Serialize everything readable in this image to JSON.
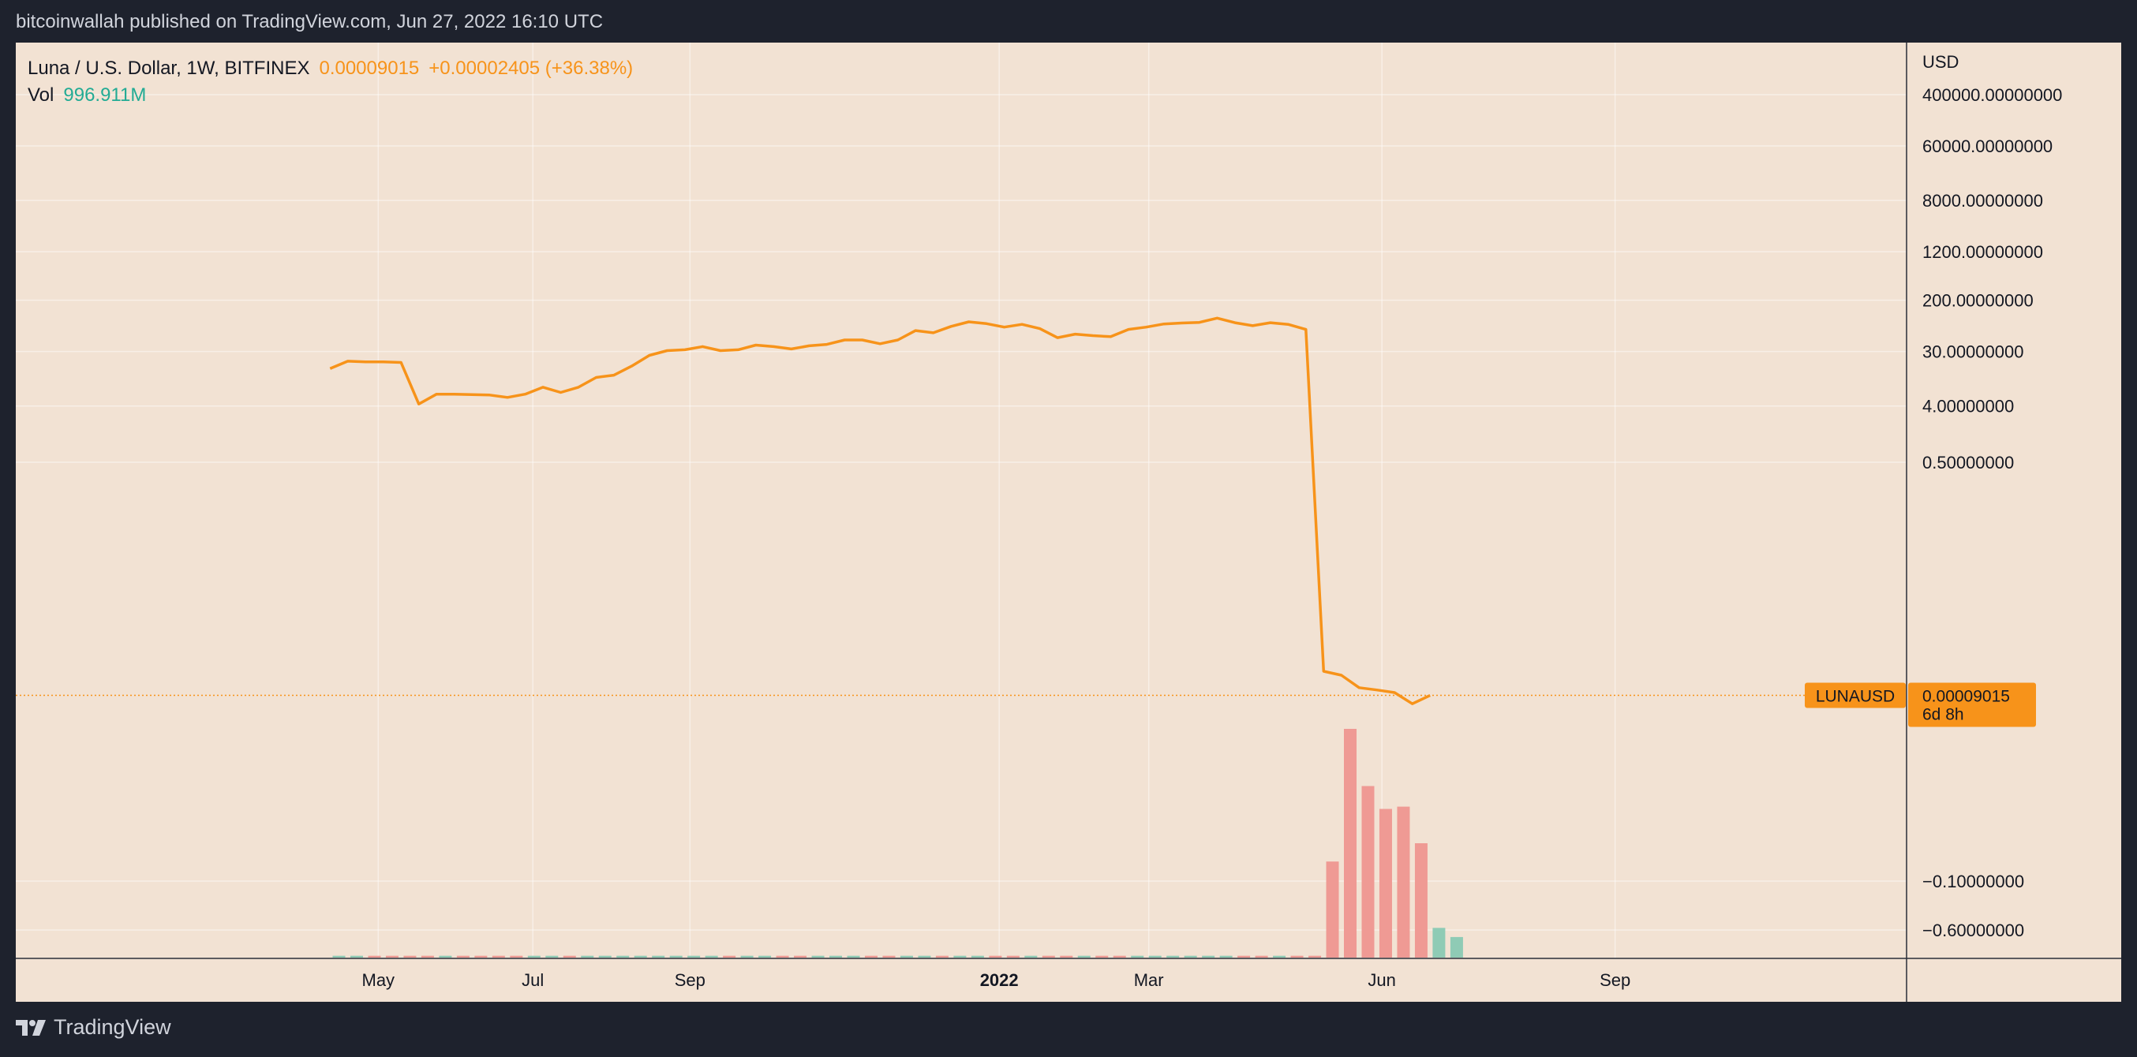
{
  "header": {
    "published_text": "bitcoinwallah published on TradingView.com, Jun 27, 2022 16:10 UTC"
  },
  "footer": {
    "brand": "TradingView"
  },
  "legend": {
    "symbol": "Luna / U.S. Dollar, 1W, BITFINEX",
    "last_price": "0.00009015",
    "change": "+0.00002405 (+36.38%)",
    "vol_label": "Vol",
    "vol_value": "996.911M"
  },
  "price_axis": {
    "currency": "USD"
  },
  "price_tag": {
    "symbol": "LUNAUSD",
    "value": "0.00009015",
    "countdown": "6d 8h"
  },
  "colors": {
    "price_line": "#f7931a",
    "volume_down": "#ef9a94",
    "volume_up": "#8fcbb5",
    "background": "#f2e2d3",
    "frame": "#1e222d"
  },
  "chart_data": {
    "type": "line",
    "price_scale": "log",
    "price_ticks": [
      {
        "label": "400000.00000000",
        "value": 400000
      },
      {
        "label": "60000.00000000",
        "value": 60000
      },
      {
        "label": "8000.00000000",
        "value": 8000
      },
      {
        "label": "1200.00000000",
        "value": 1200
      },
      {
        "label": "200.00000000",
        "value": 200
      },
      {
        "label": "30.00000000",
        "value": 30
      },
      {
        "label": "4.00000000",
        "value": 4
      },
      {
        "label": "0.50000000",
        "value": 0.5
      }
    ],
    "lower_ticks": [
      {
        "label": "−0.10000000"
      },
      {
        "label": "−0.60000000"
      }
    ],
    "time_ticks": [
      {
        "label": "May",
        "date": "2021-05-01",
        "bold": false
      },
      {
        "label": "Jul",
        "date": "2021-07-01",
        "bold": false
      },
      {
        "label": "Sep",
        "date": "2021-09-01",
        "bold": false
      },
      {
        "label": "2022",
        "date": "2022-01-01",
        "bold": true
      },
      {
        "label": "Mar",
        "date": "2022-03-01",
        "bold": false
      },
      {
        "label": "Jun",
        "date": "2022-06-01",
        "bold": false
      },
      {
        "label": "Sep",
        "date": "2022-09-01",
        "bold": false
      }
    ],
    "x_range": [
      "2020-12-09",
      "2022-12-25"
    ],
    "grid": true,
    "price_line": [
      {
        "date": "2021-04-12",
        "price": 16
      },
      {
        "date": "2021-04-19",
        "price": 21
      },
      {
        "date": "2021-04-26",
        "price": 20.5
      },
      {
        "date": "2021-05-03",
        "price": 20.5
      },
      {
        "date": "2021-05-10",
        "price": 20
      },
      {
        "date": "2021-05-17",
        "price": 4.3
      },
      {
        "date": "2021-05-24",
        "price": 6.2
      },
      {
        "date": "2021-05-31",
        "price": 6.2
      },
      {
        "date": "2021-06-07",
        "price": 6.1
      },
      {
        "date": "2021-06-14",
        "price": 6.0
      },
      {
        "date": "2021-06-21",
        "price": 5.5
      },
      {
        "date": "2021-06-28",
        "price": 6.2
      },
      {
        "date": "2021-07-05",
        "price": 8.0
      },
      {
        "date": "2021-07-12",
        "price": 6.6
      },
      {
        "date": "2021-07-19",
        "price": 8.0
      },
      {
        "date": "2021-07-26",
        "price": 11.5
      },
      {
        "date": "2021-08-02",
        "price": 12.5
      },
      {
        "date": "2021-08-09",
        "price": 17.5
      },
      {
        "date": "2021-08-16",
        "price": 26
      },
      {
        "date": "2021-08-23",
        "price": 31
      },
      {
        "date": "2021-08-30",
        "price": 32
      },
      {
        "date": "2021-09-06",
        "price": 36
      },
      {
        "date": "2021-09-13",
        "price": 31
      },
      {
        "date": "2021-09-20",
        "price": 32
      },
      {
        "date": "2021-09-27",
        "price": 38
      },
      {
        "date": "2021-10-04",
        "price": 36
      },
      {
        "date": "2021-10-11",
        "price": 33
      },
      {
        "date": "2021-10-18",
        "price": 37
      },
      {
        "date": "2021-10-25",
        "price": 39
      },
      {
        "date": "2021-11-01",
        "price": 46
      },
      {
        "date": "2021-11-08",
        "price": 46
      },
      {
        "date": "2021-11-15",
        "price": 40
      },
      {
        "date": "2021-11-22",
        "price": 46
      },
      {
        "date": "2021-11-29",
        "price": 65
      },
      {
        "date": "2021-12-06",
        "price": 60
      },
      {
        "date": "2021-12-13",
        "price": 76
      },
      {
        "date": "2021-12-20",
        "price": 90
      },
      {
        "date": "2021-12-27",
        "price": 84
      },
      {
        "date": "2022-01-03",
        "price": 74
      },
      {
        "date": "2022-01-10",
        "price": 82
      },
      {
        "date": "2022-01-17",
        "price": 70
      },
      {
        "date": "2022-01-24",
        "price": 50
      },
      {
        "date": "2022-01-31",
        "price": 57
      },
      {
        "date": "2022-02-07",
        "price": 54
      },
      {
        "date": "2022-02-14",
        "price": 52
      },
      {
        "date": "2022-02-21",
        "price": 68
      },
      {
        "date": "2022-02-28",
        "price": 74
      },
      {
        "date": "2022-03-07",
        "price": 83
      },
      {
        "date": "2022-03-14",
        "price": 86
      },
      {
        "date": "2022-03-21",
        "price": 88
      },
      {
        "date": "2022-03-28",
        "price": 103
      },
      {
        "date": "2022-04-04",
        "price": 87
      },
      {
        "date": "2022-04-11",
        "price": 78
      },
      {
        "date": "2022-04-18",
        "price": 87
      },
      {
        "date": "2022-04-25",
        "price": 82
      },
      {
        "date": "2022-05-02",
        "price": 68
      },
      {
        "date": "2022-05-09",
        "price": 0.00022
      },
      {
        "date": "2022-05-16",
        "price": 0.00019
      },
      {
        "date": "2022-05-23",
        "price": 0.00012
      },
      {
        "date": "2022-05-30",
        "price": 0.00011
      },
      {
        "date": "2022-06-06",
        "price": 0.0001
      },
      {
        "date": "2022-06-13",
        "price": 6.6e-05
      },
      {
        "date": "2022-06-20",
        "price": 9.015e-05
      }
    ],
    "volume_bars": [
      {
        "date": "2021-04-12",
        "direction": "up",
        "value": 0.008
      },
      {
        "date": "2021-04-19",
        "direction": "up",
        "value": 0.008
      },
      {
        "date": "2021-04-26",
        "direction": "down",
        "value": 0.008
      },
      {
        "date": "2021-05-03",
        "direction": "down",
        "value": 0.008
      },
      {
        "date": "2021-05-10",
        "direction": "down",
        "value": 0.008
      },
      {
        "date": "2021-05-17",
        "direction": "down",
        "value": 0.008
      },
      {
        "date": "2021-05-24",
        "direction": "up",
        "value": 0.008
      },
      {
        "date": "2021-05-31",
        "direction": "down",
        "value": 0.008
      },
      {
        "date": "2021-06-07",
        "direction": "down",
        "value": 0.008
      },
      {
        "date": "2021-06-14",
        "direction": "down",
        "value": 0.008
      },
      {
        "date": "2021-06-21",
        "direction": "down",
        "value": 0.008
      },
      {
        "date": "2021-06-28",
        "direction": "up",
        "value": 0.008
      },
      {
        "date": "2021-07-05",
        "direction": "up",
        "value": 0.008
      },
      {
        "date": "2021-07-12",
        "direction": "down",
        "value": 0.008
      },
      {
        "date": "2021-07-19",
        "direction": "up",
        "value": 0.008
      },
      {
        "date": "2021-07-26",
        "direction": "up",
        "value": 0.008
      },
      {
        "date": "2021-08-02",
        "direction": "up",
        "value": 0.008
      },
      {
        "date": "2021-08-09",
        "direction": "up",
        "value": 0.008
      },
      {
        "date": "2021-08-16",
        "direction": "up",
        "value": 0.008
      },
      {
        "date": "2021-08-23",
        "direction": "up",
        "value": 0.008
      },
      {
        "date": "2021-08-30",
        "direction": "up",
        "value": 0.008
      },
      {
        "date": "2021-09-06",
        "direction": "up",
        "value": 0.008
      },
      {
        "date": "2021-09-13",
        "direction": "down",
        "value": 0.008
      },
      {
        "date": "2021-09-20",
        "direction": "up",
        "value": 0.008
      },
      {
        "date": "2021-09-27",
        "direction": "up",
        "value": 0.008
      },
      {
        "date": "2021-10-04",
        "direction": "down",
        "value": 0.008
      },
      {
        "date": "2021-10-11",
        "direction": "down",
        "value": 0.008
      },
      {
        "date": "2021-10-18",
        "direction": "up",
        "value": 0.008
      },
      {
        "date": "2021-10-25",
        "direction": "up",
        "value": 0.008
      },
      {
        "date": "2021-11-01",
        "direction": "up",
        "value": 0.008
      },
      {
        "date": "2021-11-08",
        "direction": "down",
        "value": 0.008
      },
      {
        "date": "2021-11-15",
        "direction": "down",
        "value": 0.008
      },
      {
        "date": "2021-11-22",
        "direction": "up",
        "value": 0.008
      },
      {
        "date": "2021-11-29",
        "direction": "up",
        "value": 0.008
      },
      {
        "date": "2021-12-06",
        "direction": "down",
        "value": 0.008
      },
      {
        "date": "2021-12-13",
        "direction": "up",
        "value": 0.008
      },
      {
        "date": "2021-12-20",
        "direction": "up",
        "value": 0.008
      },
      {
        "date": "2021-12-27",
        "direction": "down",
        "value": 0.008
      },
      {
        "date": "2022-01-03",
        "direction": "down",
        "value": 0.008
      },
      {
        "date": "2022-01-10",
        "direction": "up",
        "value": 0.008
      },
      {
        "date": "2022-01-17",
        "direction": "down",
        "value": 0.008
      },
      {
        "date": "2022-01-24",
        "direction": "down",
        "value": 0.008
      },
      {
        "date": "2022-01-31",
        "direction": "up",
        "value": 0.008
      },
      {
        "date": "2022-02-07",
        "direction": "down",
        "value": 0.008
      },
      {
        "date": "2022-02-14",
        "direction": "down",
        "value": 0.008
      },
      {
        "date": "2022-02-21",
        "direction": "up",
        "value": 0.008
      },
      {
        "date": "2022-02-28",
        "direction": "up",
        "value": 0.008
      },
      {
        "date": "2022-03-07",
        "direction": "up",
        "value": 0.008
      },
      {
        "date": "2022-03-14",
        "direction": "up",
        "value": 0.008
      },
      {
        "date": "2022-03-21",
        "direction": "up",
        "value": 0.008
      },
      {
        "date": "2022-03-28",
        "direction": "up",
        "value": 0.008
      },
      {
        "date": "2022-04-04",
        "direction": "down",
        "value": 0.008
      },
      {
        "date": "2022-04-11",
        "direction": "down",
        "value": 0.008
      },
      {
        "date": "2022-04-18",
        "direction": "up",
        "value": 0.008
      },
      {
        "date": "2022-04-25",
        "direction": "down",
        "value": 0.008
      },
      {
        "date": "2022-05-02",
        "direction": "down",
        "value": 0.008
      },
      {
        "date": "2022-05-09",
        "direction": "down",
        "value": 0.42
      },
      {
        "date": "2022-05-16",
        "direction": "down",
        "value": 1.0
      },
      {
        "date": "2022-05-23",
        "direction": "down",
        "value": 0.75
      },
      {
        "date": "2022-05-30",
        "direction": "down",
        "value": 0.65
      },
      {
        "date": "2022-06-06",
        "direction": "down",
        "value": 0.66
      },
      {
        "date": "2022-06-13",
        "direction": "down",
        "value": 0.5
      },
      {
        "date": "2022-06-20",
        "direction": "up",
        "value": 0.13
      },
      {
        "date": "2022-06-27",
        "direction": "up",
        "value": 0.09
      }
    ]
  }
}
